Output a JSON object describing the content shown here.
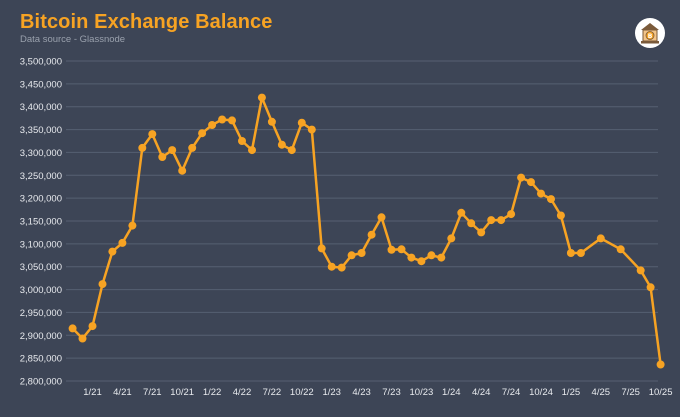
{
  "header": {
    "title": "Bitcoin Exchange Balance",
    "subtitle": "Data source - Glassnode",
    "logo_icon": "bank-bitcoin-icon"
  },
  "colors": {
    "background": "#3d4556",
    "accent": "#f7a323",
    "grid": "#566072",
    "tick_text": "#e8eaee"
  },
  "chart_data": {
    "type": "line",
    "title": "Bitcoin Exchange Balance",
    "subtitle": "Data source - Glassnode",
    "xlabel": "",
    "ylabel": "",
    "ylim": [
      2800000,
      3500000
    ],
    "yticks": [
      2800000,
      2850000,
      2900000,
      2950000,
      3000000,
      3050000,
      3100000,
      3150000,
      3200000,
      3250000,
      3300000,
      3350000,
      3400000,
      3450000,
      3500000
    ],
    "ytick_labels": [
      "2,800,000",
      "2,850,000",
      "2,900,000",
      "2,950,000",
      "3,000,000",
      "3,050,000",
      "3,100,000",
      "3,150,000",
      "3,200,000",
      "3,250,000",
      "3,300,000",
      "3,350,000",
      "3,400,000",
      "3,450,000",
      "3,500,000"
    ],
    "xticks": [
      "1/21",
      "4/21",
      "7/21",
      "10/21",
      "1/22",
      "4/22",
      "7/22",
      "10/22",
      "1/23",
      "4/23",
      "7/23",
      "10/23",
      "1/24",
      "4/24",
      "7/24",
      "10/24",
      "1/25",
      "4/25",
      "7/25",
      "10/25"
    ],
    "grid": true,
    "legend": "none",
    "series": [
      {
        "x": [
          "2020-11",
          "2020-12",
          "2021-01",
          "2021-02",
          "2021-03",
          "2021-04",
          "2021-05",
          "2021-06",
          "2021-07",
          "2021-08",
          "2021-09",
          "2021-10",
          "2021-11",
          "2021-12",
          "2022-01",
          "2022-02",
          "2022-03",
          "2022-04",
          "2022-05",
          "2022-06",
          "2022-07",
          "2022-08",
          "2022-09",
          "2022-10",
          "2022-11",
          "2022-12",
          "2023-01",
          "2023-02",
          "2023-03",
          "2023-04",
          "2023-05",
          "2023-06",
          "2023-07",
          "2023-08",
          "2023-09",
          "2023-10",
          "2023-11",
          "2023-12",
          "2024-01",
          "2024-02",
          "2024-03",
          "2024-04",
          "2024-05",
          "2024-06",
          "2024-07",
          "2024-08",
          "2024-09",
          "2024-10",
          "2024-11",
          "2024-12",
          "2025-01",
          "2025-02",
          "2025-04",
          "2025-06",
          "2025-08",
          "2025-09",
          "2025-10"
        ],
        "values": [
          2915000,
          2893000,
          2920000,
          3012000,
          3083000,
          3102000,
          3140000,
          3310000,
          3340000,
          3290000,
          3305000,
          3260000,
          3310000,
          3342000,
          3360000,
          3372000,
          3370000,
          3325000,
          3305000,
          3420000,
          3367000,
          3317000,
          3305000,
          3365000,
          3350000,
          3090000,
          3050000,
          3048000,
          3075000,
          3080000,
          3120000,
          3158000,
          3087000,
          3088000,
          3070000,
          3062000,
          3075000,
          3070000,
          3112000,
          3168000,
          3145000,
          3125000,
          3152000,
          3152000,
          3165000,
          3245000,
          3235000,
          3210000,
          3198000,
          3162000,
          3080000,
          3080000,
          3112000,
          3088000,
          3042000,
          3005000,
          2836000
        ]
      }
    ]
  }
}
